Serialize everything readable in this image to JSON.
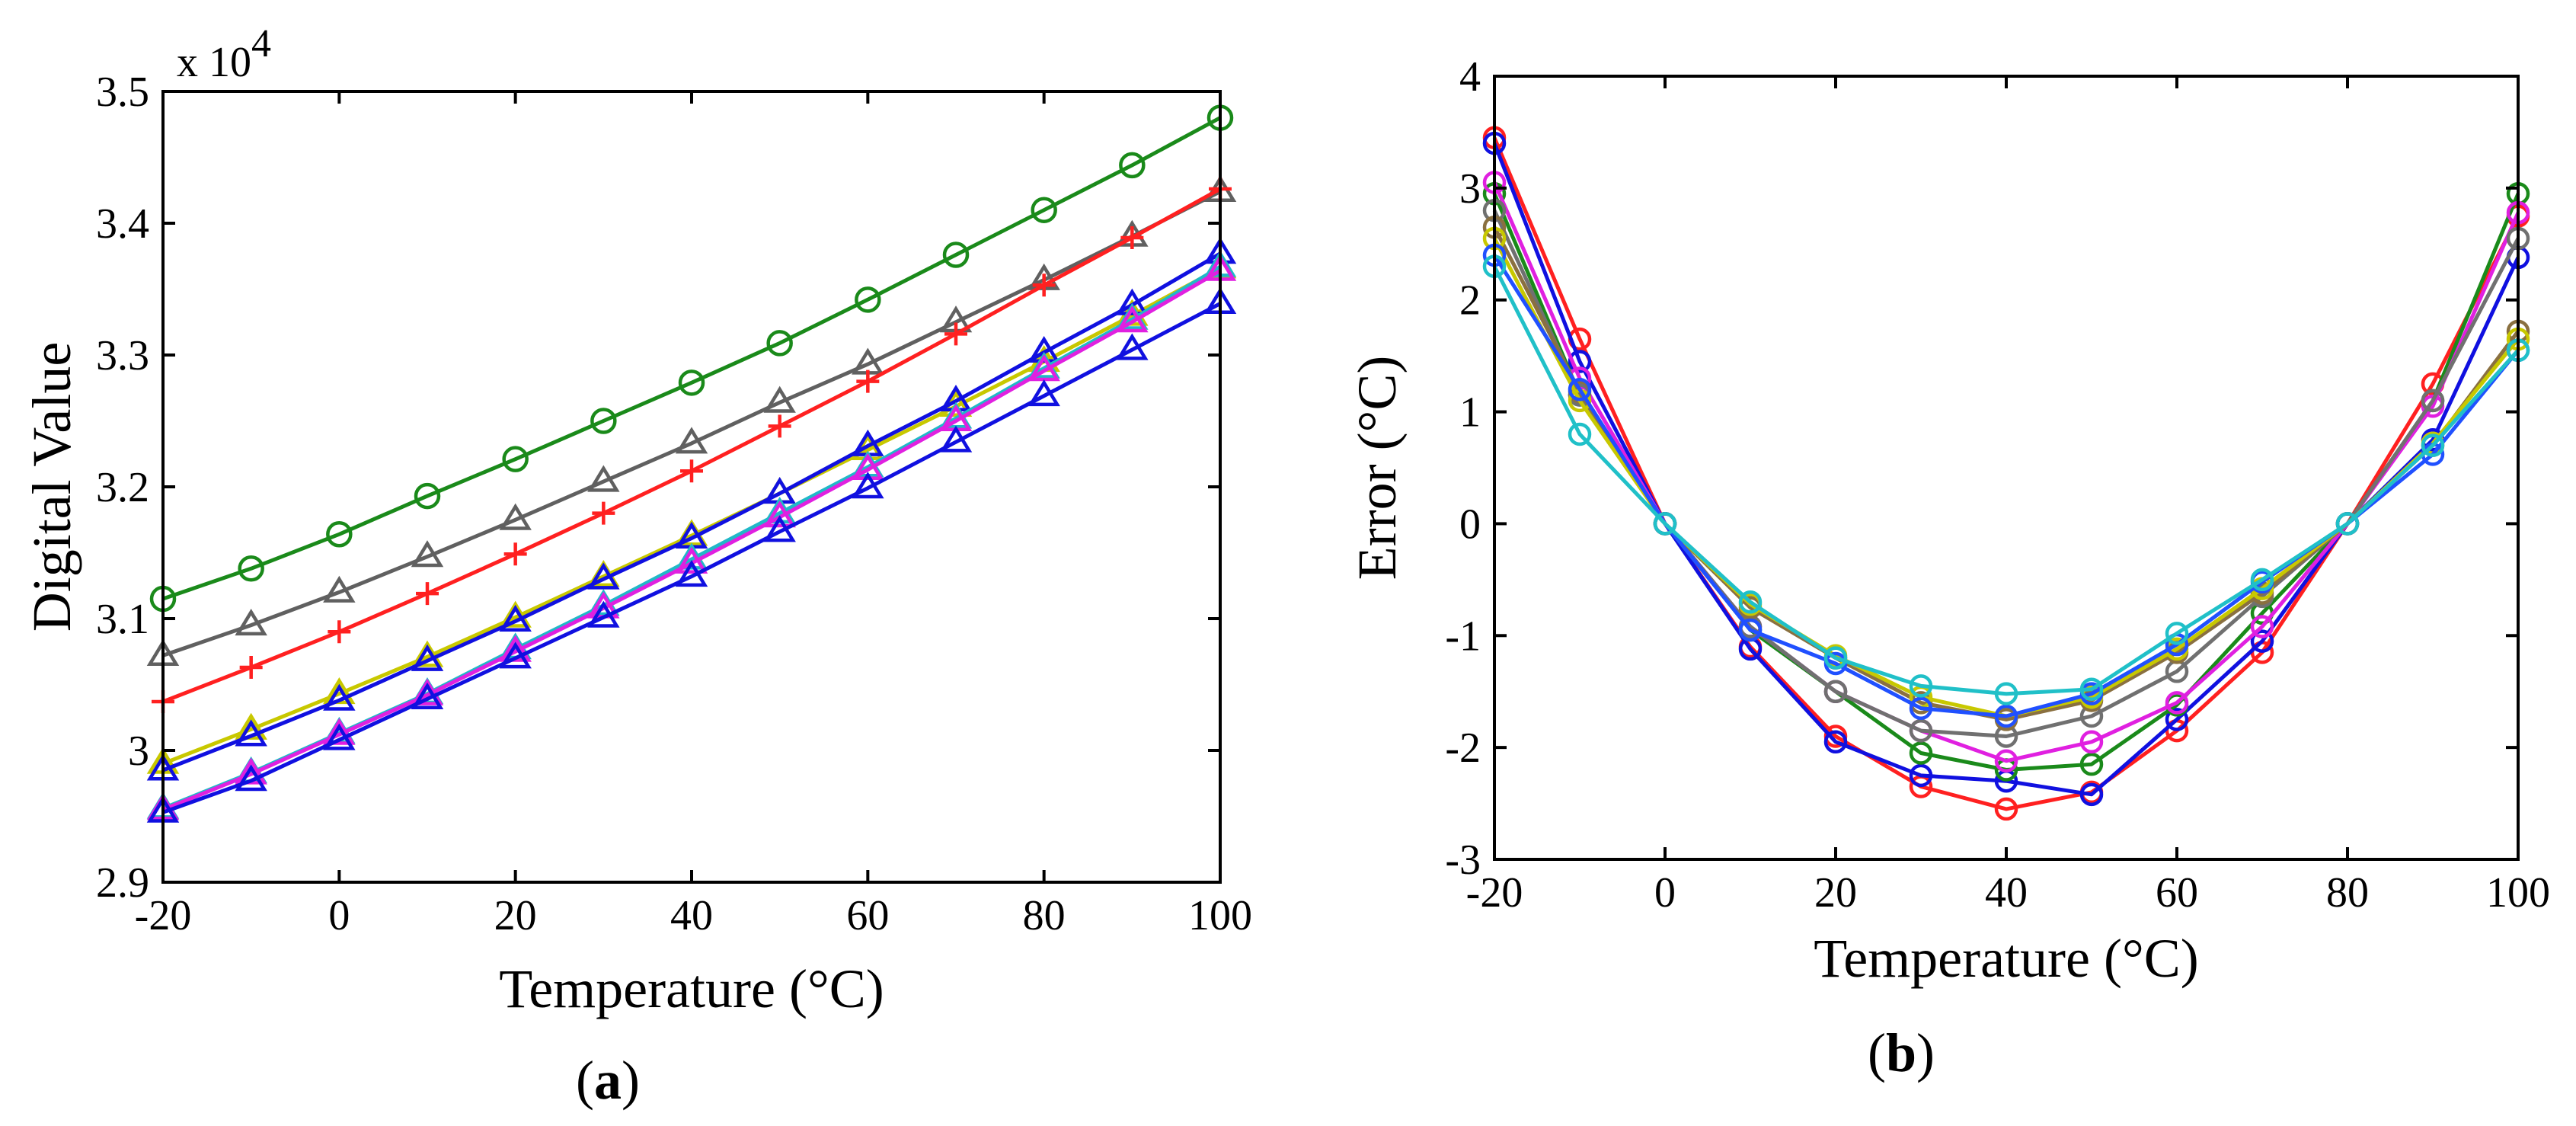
{
  "chart_data": [
    {
      "type": "line",
      "panel_label": "(a)",
      "panel_letter": "a",
      "xlabel": "Temperature (°C)",
      "ylabel": "Digital Value",
      "y_scale_note": "x 10",
      "y_scale_exponent": "4",
      "xlim": [
        -20,
        100
      ],
      "ylim": [
        2.9,
        3.5
      ],
      "x_ticks": [
        -20,
        0,
        20,
        40,
        60,
        80,
        100
      ],
      "x_tick_labels": [
        "-20",
        "0",
        "20",
        "40",
        "60",
        "80",
        "100"
      ],
      "y_ticks": [
        2.9,
        3.0,
        3.1,
        3.2,
        3.3,
        3.4,
        3.5
      ],
      "y_tick_labels": [
        "2.9",
        "3",
        "3.1",
        "3.2",
        "3.3",
        "3.4",
        "3.5"
      ],
      "x": [
        -20,
        -10,
        0,
        10,
        20,
        30,
        40,
        50,
        60,
        70,
        80,
        90,
        100
      ],
      "series": [
        {
          "name": "green-circle",
          "color": "#1a8a1a",
          "marker": "circle",
          "values": [
            3.115,
            3.138,
            3.164,
            3.193,
            3.221,
            3.25,
            3.279,
            3.309,
            3.342,
            3.376,
            3.41,
            3.444,
            3.48
          ]
        },
        {
          "name": "gray-triangle",
          "color": "#606060",
          "marker": "triangle",
          "values": [
            3.072,
            3.095,
            3.12,
            3.147,
            3.175,
            3.204,
            3.233,
            3.264,
            3.293,
            3.325,
            3.357,
            3.39,
            3.424
          ]
        },
        {
          "name": "red-plus",
          "color": "#ff2020",
          "marker": "plus",
          "values": [
            3.037,
            3.063,
            3.09,
            3.119,
            3.149,
            3.18,
            3.212,
            3.246,
            3.28,
            3.316,
            3.353,
            3.389,
            3.426
          ]
        },
        {
          "name": "yellow-triangle",
          "color": "#c8c800",
          "marker": "triangle",
          "values": [
            2.99,
            3.016,
            3.043,
            3.071,
            3.101,
            3.132,
            3.163,
            3.195,
            3.228,
            3.261,
            3.295,
            3.33,
            3.366
          ]
        },
        {
          "name": "blue-triangle-upper",
          "color": "#1010e0",
          "marker": "triangle",
          "values": [
            2.985,
            3.011,
            3.038,
            3.068,
            3.098,
            3.13,
            3.161,
            3.195,
            3.231,
            3.265,
            3.302,
            3.338,
            3.377
          ]
        },
        {
          "name": "cyan-triangle",
          "color": "#20b8c8",
          "marker": "triangle",
          "values": [
            2.956,
            2.983,
            3.013,
            3.043,
            3.077,
            3.11,
            3.145,
            3.18,
            3.215,
            3.252,
            3.29,
            3.327,
            3.367
          ]
        },
        {
          "name": "magenta-triangle",
          "color": "#e020e0",
          "marker": "triangle",
          "values": [
            2.955,
            2.982,
            3.012,
            3.042,
            3.075,
            3.108,
            3.142,
            3.177,
            3.213,
            3.25,
            3.288,
            3.325,
            3.364
          ]
        },
        {
          "name": "blue-triangle-lower",
          "color": "#1010e0",
          "marker": "triangle",
          "values": [
            2.953,
            2.977,
            3.008,
            3.039,
            3.07,
            3.101,
            3.132,
            3.166,
            3.199,
            3.234,
            3.269,
            3.304,
            3.339
          ]
        }
      ]
    },
    {
      "type": "line",
      "panel_label": "(b)",
      "panel_letter": "b",
      "xlabel": "Temperature (°C)",
      "ylabel": "Error (°C)",
      "xlim": [
        -20,
        100
      ],
      "ylim": [
        -3,
        4
      ],
      "x_ticks": [
        -20,
        0,
        20,
        40,
        60,
        80,
        100
      ],
      "x_tick_labels": [
        "-20",
        "0",
        "20",
        "40",
        "60",
        "80",
        "100"
      ],
      "y_ticks": [
        -3,
        -2,
        -1,
        0,
        1,
        2,
        3,
        4
      ],
      "y_tick_labels": [
        "-3",
        "-2",
        "-1",
        "0",
        "1",
        "2",
        "3",
        "4"
      ],
      "x": [
        -20,
        -10,
        0,
        10,
        20,
        30,
        40,
        50,
        60,
        70,
        80,
        90,
        100
      ],
      "series": [
        {
          "name": "red",
          "color": "#ff2020",
          "marker": "circle",
          "values": [
            3.45,
            1.65,
            0,
            -1.1,
            -1.9,
            -2.35,
            -2.55,
            -2.4,
            -1.85,
            -1.15,
            0,
            1.25,
            2.75
          ]
        },
        {
          "name": "blue-dark",
          "color": "#1010e0",
          "marker": "circle",
          "values": [
            3.4,
            1.45,
            0,
            -1.12,
            -1.95,
            -2.25,
            -2.3,
            -2.42,
            -1.75,
            -1.05,
            0,
            0.75,
            2.38
          ]
        },
        {
          "name": "green",
          "color": "#1a8a1a",
          "marker": "circle",
          "values": [
            2.95,
            1.15,
            0,
            -0.95,
            -1.5,
            -2.05,
            -2.2,
            -2.15,
            -1.62,
            -0.8,
            0,
            1.1,
            2.95
          ]
        },
        {
          "name": "magenta",
          "color": "#e020e0",
          "marker": "circle",
          "values": [
            3.05,
            1.3,
            0,
            -0.92,
            -1.5,
            -1.85,
            -2.12,
            -1.95,
            -1.6,
            -0.92,
            0,
            1.05,
            2.78
          ]
        },
        {
          "name": "gray",
          "color": "#707070",
          "marker": "circle",
          "values": [
            2.8,
            1.15,
            0,
            -0.92,
            -1.5,
            -1.85,
            -1.9,
            -1.72,
            -1.32,
            -0.65,
            0,
            1.1,
            2.55
          ]
        },
        {
          "name": "olive",
          "color": "#8a7040",
          "marker": "circle",
          "values": [
            2.65,
            1.18,
            0,
            -0.75,
            -1.2,
            -1.6,
            -1.75,
            -1.58,
            -1.15,
            -0.62,
            0,
            0.7,
            1.72
          ]
        },
        {
          "name": "yellow",
          "color": "#c8c800",
          "marker": "circle",
          "values": [
            2.55,
            1.1,
            0,
            -0.72,
            -1.18,
            -1.55,
            -1.72,
            -1.55,
            -1.12,
            -0.58,
            0,
            0.72,
            1.65
          ]
        },
        {
          "name": "blue-light",
          "color": "#2050ff",
          "marker": "circle",
          "values": [
            2.4,
            1.2,
            0,
            -0.95,
            -1.25,
            -1.65,
            -1.72,
            -1.52,
            -1.08,
            -0.52,
            0,
            0.62,
            1.55
          ]
        },
        {
          "name": "cyan",
          "color": "#20c0c8",
          "marker": "circle",
          "values": [
            2.3,
            0.8,
            0,
            -0.7,
            -1.2,
            -1.45,
            -1.52,
            -1.48,
            -0.98,
            -0.5,
            0,
            0.7,
            1.55
          ]
        }
      ]
    }
  ]
}
